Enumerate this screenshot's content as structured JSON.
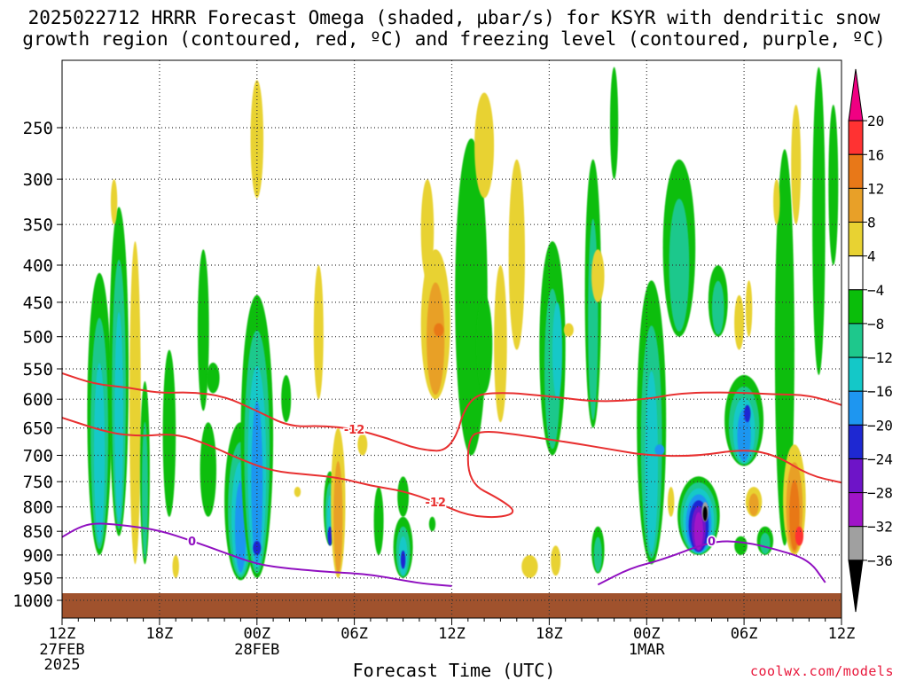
{
  "title": {
    "line1": "2025022712 HRRR Forecast Omega (shaded, µbar/s) for KSYR with dendritic snow",
    "line2": "growth region (contoured, red, ºC) and freezing level (contoured, purple, ºC)"
  },
  "credit": "coolwx.com/models",
  "chart_data": {
    "type": "heatmap",
    "title": "2025022712 HRRR Forecast Omega (shaded, µbar/s) for KSYR with dendritic snow growth region (contoured, red, ºC) and freezing level (contoured, purple, ºC)",
    "xlabel": "Forecast Time (UTC)",
    "ylabel": "",
    "xlim": [
      0,
      48
    ],
    "y_axis": {
      "scale": "pressure (inverted)",
      "ylim": [
        1030,
        200
      ]
    },
    "x_ticks": [
      {
        "hour": 0,
        "label": "12Z",
        "sub1": "27FEB",
        "sub2": "2025"
      },
      {
        "hour": 6,
        "label": "18Z"
      },
      {
        "hour": 12,
        "label": "00Z",
        "sub1": "28FEB"
      },
      {
        "hour": 18,
        "label": "06Z"
      },
      {
        "hour": 24,
        "label": "12Z"
      },
      {
        "hour": 30,
        "label": "18Z"
      },
      {
        "hour": 36,
        "label": "00Z",
        "sub1": "1MAR"
      },
      {
        "hour": 42,
        "label": "06Z"
      },
      {
        "hour": 48,
        "label": "12Z"
      }
    ],
    "y_ticks": [
      250,
      300,
      350,
      400,
      450,
      500,
      550,
      600,
      650,
      700,
      750,
      800,
      850,
      900,
      950,
      1000
    ],
    "grid": "dotted",
    "legend": {
      "position": "right",
      "tick_labels": [
        "20",
        "16",
        "12",
        "8",
        "4",
        "−4",
        "−8",
        "−12",
        "−16",
        "−20",
        "−24",
        "−28",
        "−32",
        "−36"
      ],
      "colors": [
        "#f00082",
        "#ff3232",
        "#e87818",
        "#e8a028",
        "#e8d232",
        "#ffffff",
        "#0abe0a",
        "#1ec88c",
        "#14c8c8",
        "#1e96f0",
        "#1e28d2",
        "#6e14c8",
        "#a014c8",
        "#a0a0a0",
        "#000000"
      ]
    },
    "ground_color": "#a0522d",
    "contours": [
      {
        "label": "-12",
        "color": "#e83030",
        "points": [
          [
            0,
            557
          ],
          [
            2,
            575
          ],
          [
            4,
            580
          ],
          [
            6,
            590
          ],
          [
            8,
            588
          ],
          [
            10,
            595
          ],
          [
            12,
            620
          ],
          [
            14,
            648
          ],
          [
            16,
            646
          ],
          [
            18,
            652
          ],
          [
            20,
            668
          ],
          [
            22,
            690
          ],
          [
            24,
            693
          ],
          [
            25,
            595
          ],
          [
            27,
            588
          ],
          [
            30,
            595
          ],
          [
            33,
            605
          ],
          [
            36,
            600
          ],
          [
            38,
            590
          ],
          [
            41,
            588
          ],
          [
            44,
            592
          ],
          [
            46,
            593
          ],
          [
            48,
            610
          ]
        ]
      },
      {
        "label": "-12",
        "color": "#e83030",
        "points": [
          [
            0,
            632
          ],
          [
            3,
            660
          ],
          [
            5,
            665
          ],
          [
            7,
            660
          ],
          [
            9,
            680
          ],
          [
            11,
            708
          ],
          [
            13,
            730
          ],
          [
            15,
            736
          ],
          [
            17,
            742
          ],
          [
            19,
            758
          ],
          [
            21,
            768
          ],
          [
            23,
            790
          ],
          [
            25,
            818
          ],
          [
            27,
            822
          ],
          [
            28,
            810
          ],
          [
            27,
            785
          ],
          [
            25,
            752
          ],
          [
            25,
            665
          ],
          [
            26,
            655
          ],
          [
            28,
            662
          ],
          [
            31,
            675
          ],
          [
            34,
            690
          ],
          [
            36,
            700
          ],
          [
            39,
            702
          ],
          [
            42,
            688
          ],
          [
            44,
            700
          ],
          [
            46,
            738
          ],
          [
            48,
            752
          ]
        ]
      },
      {
        "label": "0",
        "color": "#9010c0",
        "points": [
          [
            0,
            862
          ],
          [
            1,
            842
          ],
          [
            2,
            832
          ],
          [
            4,
            838
          ],
          [
            6,
            848
          ],
          [
            8,
            870
          ],
          [
            10,
            895
          ],
          [
            12,
            920
          ],
          [
            14,
            930
          ],
          [
            17,
            938
          ],
          [
            19,
            942
          ],
          [
            22,
            962
          ],
          [
            24,
            968
          ]
        ]
      },
      {
        "label": "0",
        "color": "#9010c0",
        "points": [
          [
            33,
            965
          ],
          [
            35,
            928
          ],
          [
            37,
            910
          ],
          [
            40,
            870
          ],
          [
            42,
            872
          ],
          [
            44,
            888
          ],
          [
            46,
            910
          ],
          [
            47,
            960
          ]
        ]
      }
    ]
  }
}
